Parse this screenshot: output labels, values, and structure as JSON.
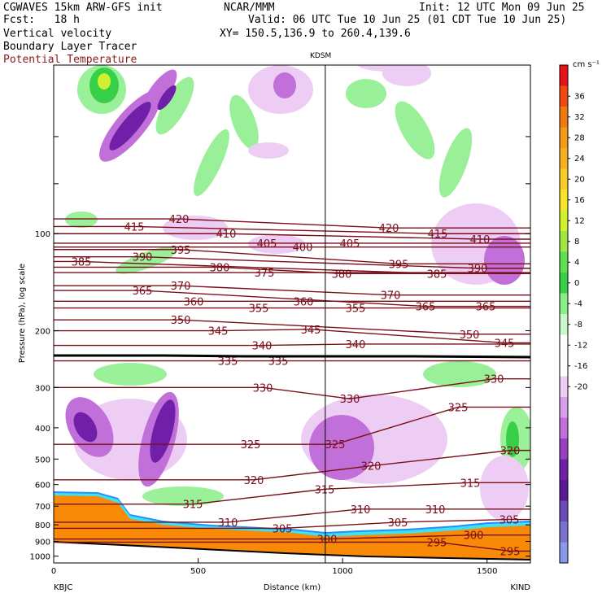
{
  "header": {
    "model": "CGWAVES 15km ARW-GFS init",
    "fcst": "Fcst:   18 h",
    "org": "NCAR/MMM",
    "init": "Init: 12 UTC Mon 09 Jun 25",
    "valid": "Valid: 06 UTC Tue 10 Jun 25 (01 CDT Tue 10 Jun 25)",
    "xy": "XY= 150.5,136.9 to 260.4,139.6",
    "field1": "Vertical velocity",
    "field2": "Boundary Layer Tracer",
    "field3": "Potential Temperature",
    "field3_color": "#8b1a1a",
    "station_mid": "KDSM",
    "station_left": "KBJC",
    "station_right": "KIND"
  },
  "chart_data": {
    "type": "heatmap",
    "xlabel": "Distance (km)",
    "ylabel": "Pressure (hPa), log scale",
    "xlim": [
      0,
      1650
    ],
    "ylim": [
      1050,
      30
    ],
    "x_ticks": [
      0,
      500,
      1000,
      1500
    ],
    "y_ticks": [
      100,
      200,
      300,
      400,
      500,
      600,
      700,
      800,
      900,
      1000
    ],
    "station_line_x_km": 940,
    "colorbar": {
      "unit": "cm s⁻¹",
      "tick_labels": [
        "36",
        "32",
        "28",
        "24",
        "20",
        "16",
        "12",
        "8",
        "4",
        "0",
        "-4",
        "-8",
        "-12",
        "-16",
        "-20"
      ],
      "colors": [
        "#e8121a",
        "#f04a12",
        "#f07a10",
        "#f49a18",
        "#f8b020",
        "#f8cc28",
        "#f8e428",
        "#d0f030",
        "#a0e840",
        "#60e050",
        "#38d048",
        "#88ee88",
        "#c8f8c8",
        "#ffffff",
        "#ffffff",
        "#eecdf4",
        "#d79fe8",
        "#c070d8",
        "#9840c0",
        "#7020a8",
        "#5a1a98",
        "#6a4ab8",
        "#7a72d0",
        "#8a98e8"
      ]
    },
    "theta_labels": [
      {
        "v": 420,
        "x": 220,
        "p": 90
      },
      {
        "v": 415,
        "x": 165,
        "p": 95
      },
      {
        "v": 410,
        "x": 278,
        "p": 100
      },
      {
        "v": 405,
        "x": 328,
        "p": 107
      },
      {
        "v": 400,
        "x": 372,
        "p": 110
      },
      {
        "v": 405,
        "x": 430,
        "p": 107
      },
      {
        "v": 420,
        "x": 478,
        "p": 96
      },
      {
        "v": 415,
        "x": 538,
        "p": 100
      },
      {
        "v": 410,
        "x": 590,
        "p": 104
      },
      {
        "v": 385,
        "x": 100,
        "p": 122
      },
      {
        "v": 390,
        "x": 175,
        "p": 118
      },
      {
        "v": 395,
        "x": 222,
        "p": 112
      },
      {
        "v": 380,
        "x": 270,
        "p": 127
      },
      {
        "v": 375,
        "x": 325,
        "p": 132
      },
      {
        "v": 380,
        "x": 420,
        "p": 133
      },
      {
        "v": 395,
        "x": 490,
        "p": 124
      },
      {
        "v": 385,
        "x": 537,
        "p": 133
      },
      {
        "v": 390,
        "x": 587,
        "p": 128
      },
      {
        "v": 365,
        "x": 175,
        "p": 150
      },
      {
        "v": 370,
        "x": 222,
        "p": 145
      },
      {
        "v": 360,
        "x": 238,
        "p": 162
      },
      {
        "v": 355,
        "x": 318,
        "p": 170
      },
      {
        "v": 360,
        "x": 373,
        "p": 162
      },
      {
        "v": 370,
        "x": 480,
        "p": 155
      },
      {
        "v": 355,
        "x": 437,
        "p": 170
      },
      {
        "v": 365,
        "x": 523,
        "p": 168
      },
      {
        "v": 365,
        "x": 597,
        "p": 168
      },
      {
        "v": 350,
        "x": 222,
        "p": 185
      },
      {
        "v": 345,
        "x": 268,
        "p": 200
      },
      {
        "v": 340,
        "x": 322,
        "p": 222
      },
      {
        "v": 345,
        "x": 382,
        "p": 198
      },
      {
        "v": 340,
        "x": 437,
        "p": 220
      },
      {
        "v": 350,
        "x": 577,
        "p": 205
      },
      {
        "v": 345,
        "x": 620,
        "p": 218
      },
      {
        "v": 335,
        "x": 280,
        "p": 248
      },
      {
        "v": 335,
        "x": 342,
        "p": 248
      },
      {
        "v": 330,
        "x": 323,
        "p": 300
      },
      {
        "v": 330,
        "x": 430,
        "p": 325
      },
      {
        "v": 330,
        "x": 607,
        "p": 282
      },
      {
        "v": 325,
        "x": 563,
        "p": 345
      },
      {
        "v": 325,
        "x": 308,
        "p": 450
      },
      {
        "v": 325,
        "x": 412,
        "p": 450
      },
      {
        "v": 320,
        "x": 456,
        "p": 525
      },
      {
        "v": 320,
        "x": 627,
        "p": 470
      },
      {
        "v": 320,
        "x": 312,
        "p": 580
      },
      {
        "v": 315,
        "x": 237,
        "p": 690
      },
      {
        "v": 315,
        "x": 399,
        "p": 620
      },
      {
        "v": 315,
        "x": 578,
        "p": 592
      },
      {
        "v": 310,
        "x": 280,
        "p": 785
      },
      {
        "v": 310,
        "x": 443,
        "p": 715
      },
      {
        "v": 310,
        "x": 535,
        "p": 715
      },
      {
        "v": 305,
        "x": 347,
        "p": 820
      },
      {
        "v": 305,
        "x": 489,
        "p": 785
      },
      {
        "v": 305,
        "x": 626,
        "p": 770
      },
      {
        "v": 300,
        "x": 402,
        "p": 885
      },
      {
        "v": 300,
        "x": 582,
        "p": 860
      },
      {
        "v": 295,
        "x": 537,
        "p": 905
      },
      {
        "v": 295,
        "x": 627,
        "p": 965
      }
    ]
  }
}
